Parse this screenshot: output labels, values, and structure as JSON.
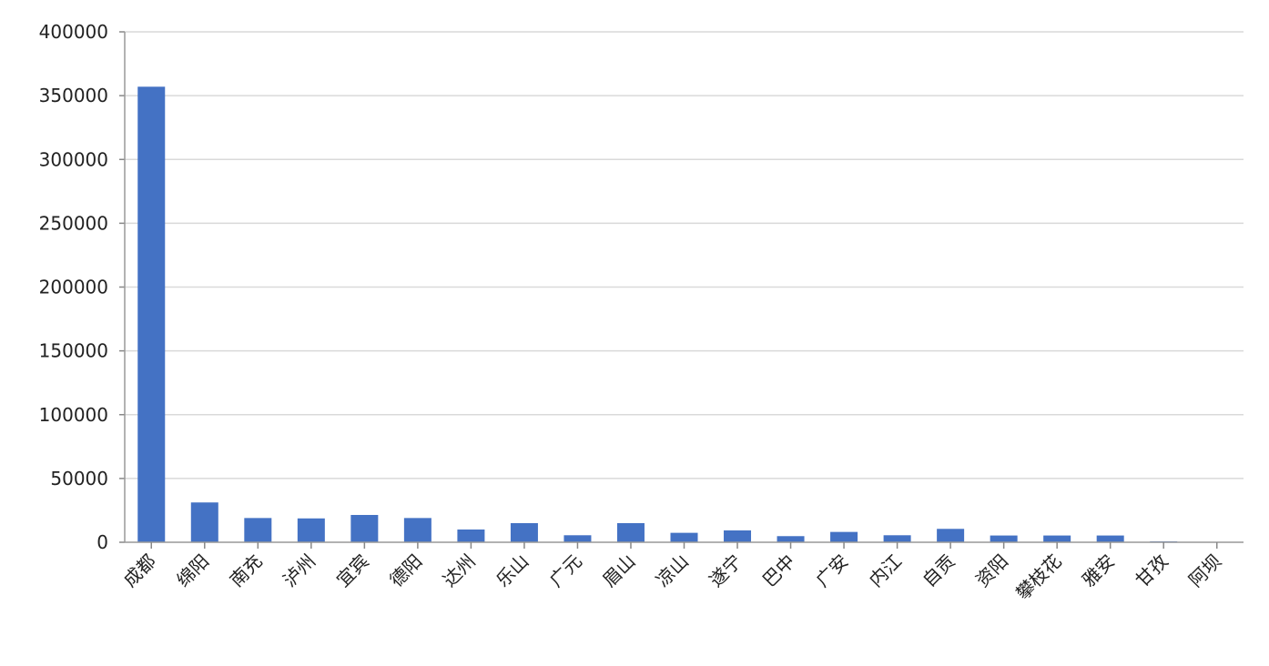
{
  "chart_data": {
    "type": "bar",
    "title": "",
    "xlabel": "",
    "ylabel": "",
    "ylim": [
      0,
      400000
    ],
    "yticks": [
      0,
      50000,
      100000,
      150000,
      200000,
      250000,
      300000,
      350000,
      400000
    ],
    "grid": true,
    "bar_color": "#4472C4",
    "categories": [
      "成都",
      "绵阳",
      "南充",
      "泸州",
      "宜宾",
      "德阳",
      "达州",
      "乐山",
      "广元",
      "眉山",
      "凉山",
      "遂宁",
      "巴中",
      "广安",
      "内江",
      "自贡",
      "资阳",
      "攀枝花",
      "雅安",
      "甘孜",
      "阿坝"
    ],
    "values": [
      357000,
      31200,
      19000,
      18700,
      21400,
      19000,
      10000,
      15000,
      5500,
      15000,
      7400,
      9300,
      4800,
      8100,
      5500,
      10500,
      5300,
      5300,
      5300,
      700,
      200
    ]
  }
}
